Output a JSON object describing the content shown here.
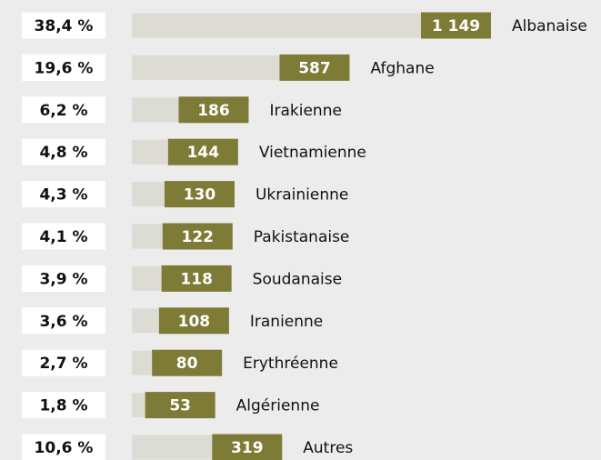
{
  "chart_data": {
    "type": "bar",
    "orientation": "horizontal",
    "categories": [
      "Albanaise",
      "Afghane",
      "Irakienne",
      "Vietnamienne",
      "Ukrainienne",
      "Pakistanaise",
      "Soudanaise",
      "Iranienne",
      "Erythréenne",
      "Algérienne",
      "Autres"
    ],
    "values": [
      1149,
      587,
      186,
      144,
      130,
      122,
      118,
      108,
      80,
      53,
      319
    ],
    "value_labels": [
      "1 149",
      "587",
      "186",
      "144",
      "130",
      "122",
      "118",
      "108",
      "80",
      "53",
      "319"
    ],
    "share_labels": [
      "38,4 %",
      "19,6 %",
      "6,2 %",
      "4,8 %",
      "4,3 %",
      "4,1 %",
      "3,9 %",
      "3,6 %",
      "2,7 %",
      "1,8 %",
      "10,6 %"
    ],
    "color": "#7d7b35",
    "track_color": "#dcdcd4"
  }
}
